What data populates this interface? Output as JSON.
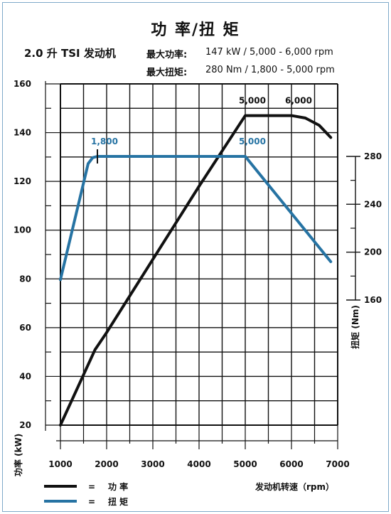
{
  "header": {
    "title": "功 率/扭 矩",
    "engine": "2.0 升 TSI 发动机",
    "max_power_label": "最大功率:",
    "max_power_value": "147 kW / 5,000 - 6,000 rpm",
    "max_torque_label": "最大扭矩:",
    "max_torque_value": "280 Nm / 1,800 - 5,000 rpm"
  },
  "chart_data": {
    "type": "line",
    "x_axis": {
      "label": "发动机转速（rpm）",
      "range": [
        1000,
        7000
      ],
      "ticks": [
        1000,
        2000,
        3000,
        4000,
        5000,
        6000,
        7000
      ],
      "tick_labels": [
        "1000",
        "2000",
        "3000",
        "4000",
        "5000",
        "6000",
        "7000"
      ]
    },
    "y_axis_left": {
      "label": "功率 (kW)",
      "range": [
        20,
        160
      ],
      "ticks": [
        20,
        40,
        60,
        80,
        100,
        120,
        140,
        160
      ],
      "tick_labels": [
        "20",
        "40",
        "60",
        "80",
        "100",
        "120",
        "140",
        "160"
      ]
    },
    "y_axis_right": {
      "label": "扭矩 (Nm)",
      "range": [
        160,
        280
      ],
      "ticks": [
        160,
        200,
        240,
        280
      ],
      "tick_labels": [
        "160",
        "200",
        "240",
        "280"
      ]
    },
    "grid": true,
    "series": [
      {
        "name": "功 率",
        "axis": "left",
        "color": "#111111",
        "x": [
          1000,
          1750,
          2000,
          3000,
          4000,
          5000,
          6000,
          6300,
          6600,
          6850
        ],
        "y": [
          20,
          51,
          58,
          88,
          118,
          147,
          147,
          146,
          143,
          138
        ]
      },
      {
        "name": "扭 矩",
        "axis": "right",
        "color": "#2673a3",
        "x": [
          1000,
          1600,
          1700,
          1800,
          5000,
          6850
        ],
        "y": [
          177,
          274,
          279,
          280,
          280,
          192
        ]
      }
    ],
    "annotations": [
      {
        "text": "5,000",
        "x": 5000,
        "y": 147,
        "axis": "left",
        "color": "#111111"
      },
      {
        "text": "6,000",
        "x": 6000,
        "y": 147,
        "axis": "left",
        "color": "#111111"
      },
      {
        "text": "1,800",
        "x": 1800,
        "y": 280,
        "axis": "right",
        "color": "#2673a3"
      },
      {
        "text": "5,000",
        "x": 5000,
        "y": 280,
        "axis": "right",
        "color": "#2673a3"
      }
    ],
    "legend": {
      "placement": "bottom-left",
      "items": [
        {
          "symbol": "=",
          "label": "功 率",
          "color": "#111111"
        },
        {
          "symbol": "=",
          "label": "扭 矩",
          "color": "#2673a3"
        }
      ]
    }
  }
}
